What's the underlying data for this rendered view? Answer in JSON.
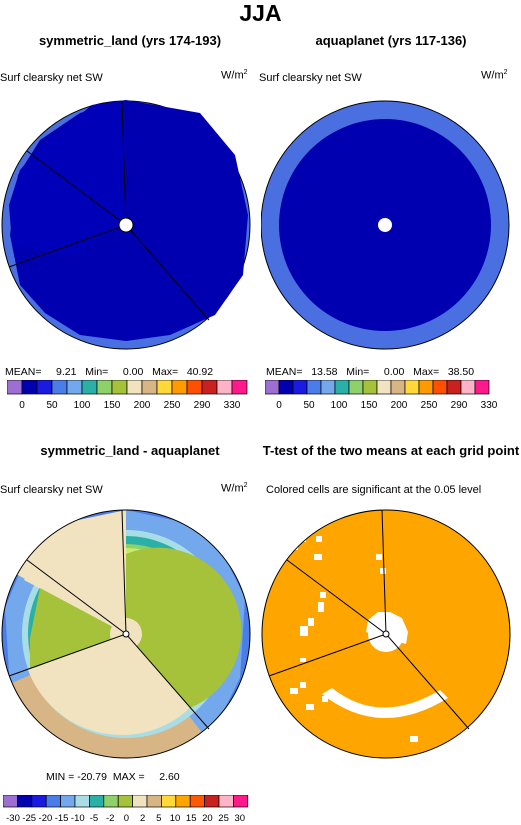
{
  "page_title": "JJA",
  "colors": {
    "abs_palette": [
      "#9e6fd3",
      "#0000b0",
      "#1a1ae0",
      "#4a7de8",
      "#73a8ec",
      "#2bb0a8",
      "#8ed06a",
      "#a5c23a",
      "#f2e3c0",
      "#d8b584",
      "#ffd93a",
      "#ff9a00",
      "#ff4f00",
      "#c92020",
      "#ffb3c6",
      "#ff1a8c"
    ],
    "diff_palette": [
      "#9e6fd3",
      "#0000b0",
      "#1a1ae0",
      "#4a7de8",
      "#73a8ec",
      "#a9dde6",
      "#2bb0a8",
      "#8ed06a",
      "#a5c23a",
      "#f2e3c0",
      "#d8b584",
      "#ffd93a",
      "#ffa500",
      "#ff5a00",
      "#c92020",
      "#ffb3c6",
      "#ff1a8c"
    ],
    "ttest": "#ffa500"
  },
  "panels": {
    "p1": {
      "title": "symmetric_land (yrs 174-193)",
      "var": "Surf clearsky net SW",
      "units": "W/m",
      "units_sup": "2",
      "mean": "MEAN=     9.21",
      "min": "Min=     0.00",
      "max": "Max=   40.92"
    },
    "p2": {
      "title": "aquaplanet (yrs 117-136)",
      "var": "Surf clearsky net SW",
      "units": "W/m",
      "units_sup": "2",
      "mean": "MEAN=   13.58",
      "min": "Min=     0.00",
      "max": "Max=   38.50"
    },
    "p3": {
      "title": "symmetric_land - aquaplanet",
      "var": "Surf clearsky net SW",
      "units": "W/m",
      "units_sup": "2",
      "minmax": "MIN = -20.79  MAX =     2.60"
    },
    "p4": {
      "title": "T-test of the two means at each grid point",
      "note": "Colored cells are significant at the 0.05 level"
    }
  },
  "chart_data": [
    {
      "type": "heatmap",
      "title": "symmetric_land (yrs 174-193)",
      "projection": "polar",
      "units": "W/m2",
      "stats": {
        "mean": 9.21,
        "min": 0.0,
        "max": 40.92
      },
      "colorbar_ticks": [
        "0",
        "50",
        "100",
        "150",
        "200",
        "250",
        "290",
        "330"
      ]
    },
    {
      "type": "heatmap",
      "title": "aquaplanet (yrs 117-136)",
      "projection": "polar",
      "units": "W/m2",
      "stats": {
        "mean": 13.58,
        "min": 0.0,
        "max": 38.5
      },
      "colorbar_ticks": [
        "0",
        "50",
        "100",
        "150",
        "200",
        "250",
        "290",
        "330"
      ]
    },
    {
      "type": "heatmap",
      "title": "symmetric_land - aquaplanet",
      "projection": "polar",
      "units": "W/m2",
      "stats": {
        "min": -20.79,
        "max": 2.6
      },
      "colorbar_ticks": [
        "-30",
        "-25",
        "-20",
        "-15",
        "-10",
        "-5",
        "-2",
        "0",
        "2",
        "5",
        "10",
        "15",
        "20",
        "25",
        "30"
      ]
    },
    {
      "type": "heatmap",
      "title": "T-test of the two means at each grid point",
      "projection": "polar",
      "note": "Colored cells are significant at the 0.05 level"
    }
  ]
}
